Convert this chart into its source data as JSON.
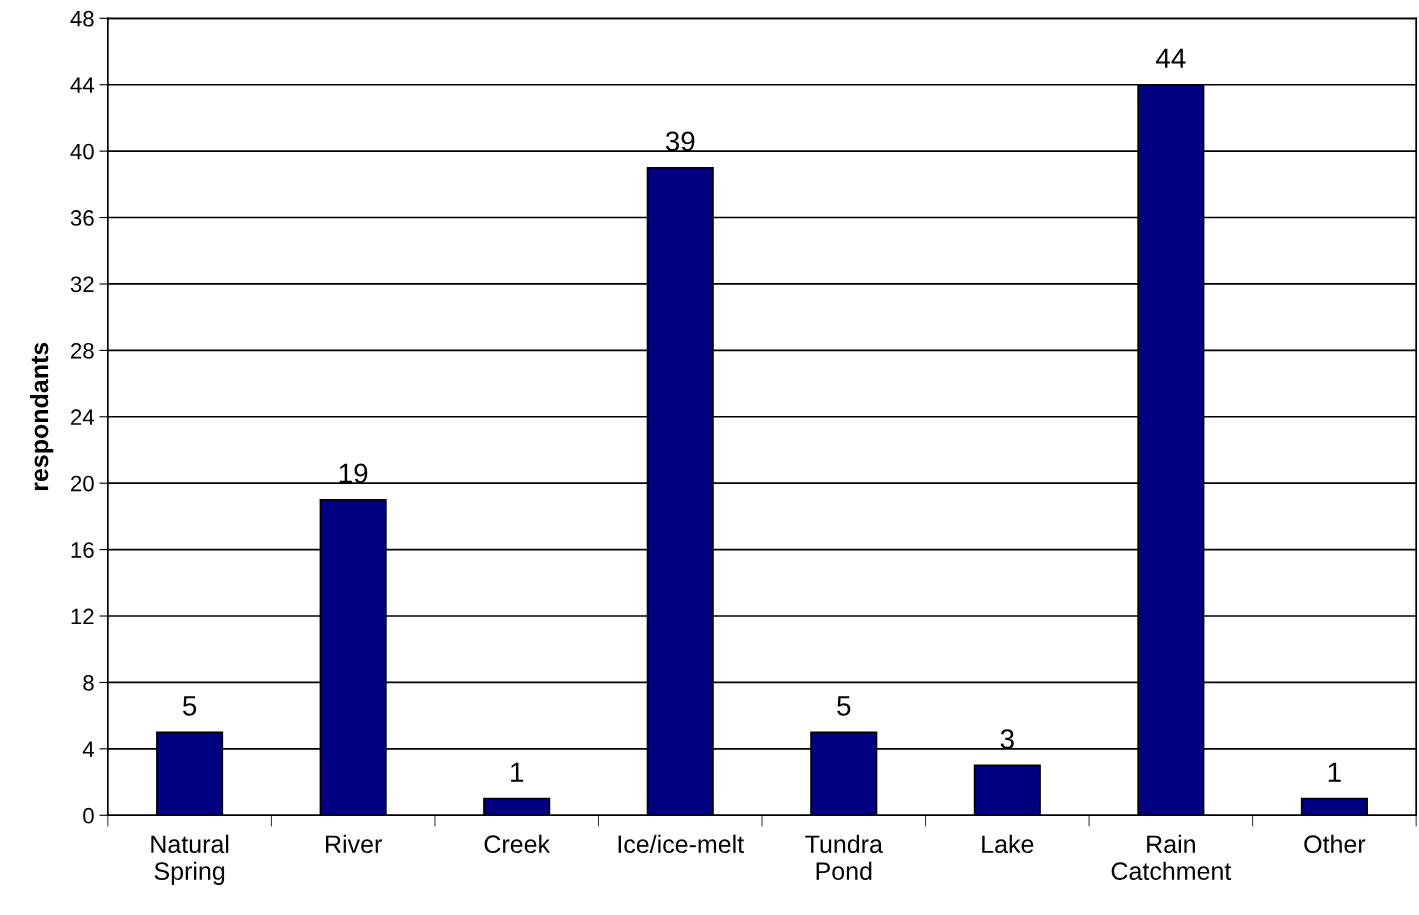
{
  "chart_data": {
    "type": "bar",
    "ylabel": "respondants",
    "categories": [
      "Natural\nSpring",
      "River",
      "Creek",
      "Ice/ice-melt",
      "Tundra\nPond",
      "Lake",
      "Rain\nCatchment",
      "Other"
    ],
    "values": [
      5,
      19,
      1,
      39,
      5,
      3,
      44,
      1
    ],
    "color": "#000080",
    "ylim": [
      0,
      48
    ],
    "yticks": [
      0,
      4,
      8,
      12,
      16,
      20,
      24,
      28,
      32,
      36,
      40,
      44,
      48
    ],
    "grid": "y",
    "data_labels": true
  }
}
